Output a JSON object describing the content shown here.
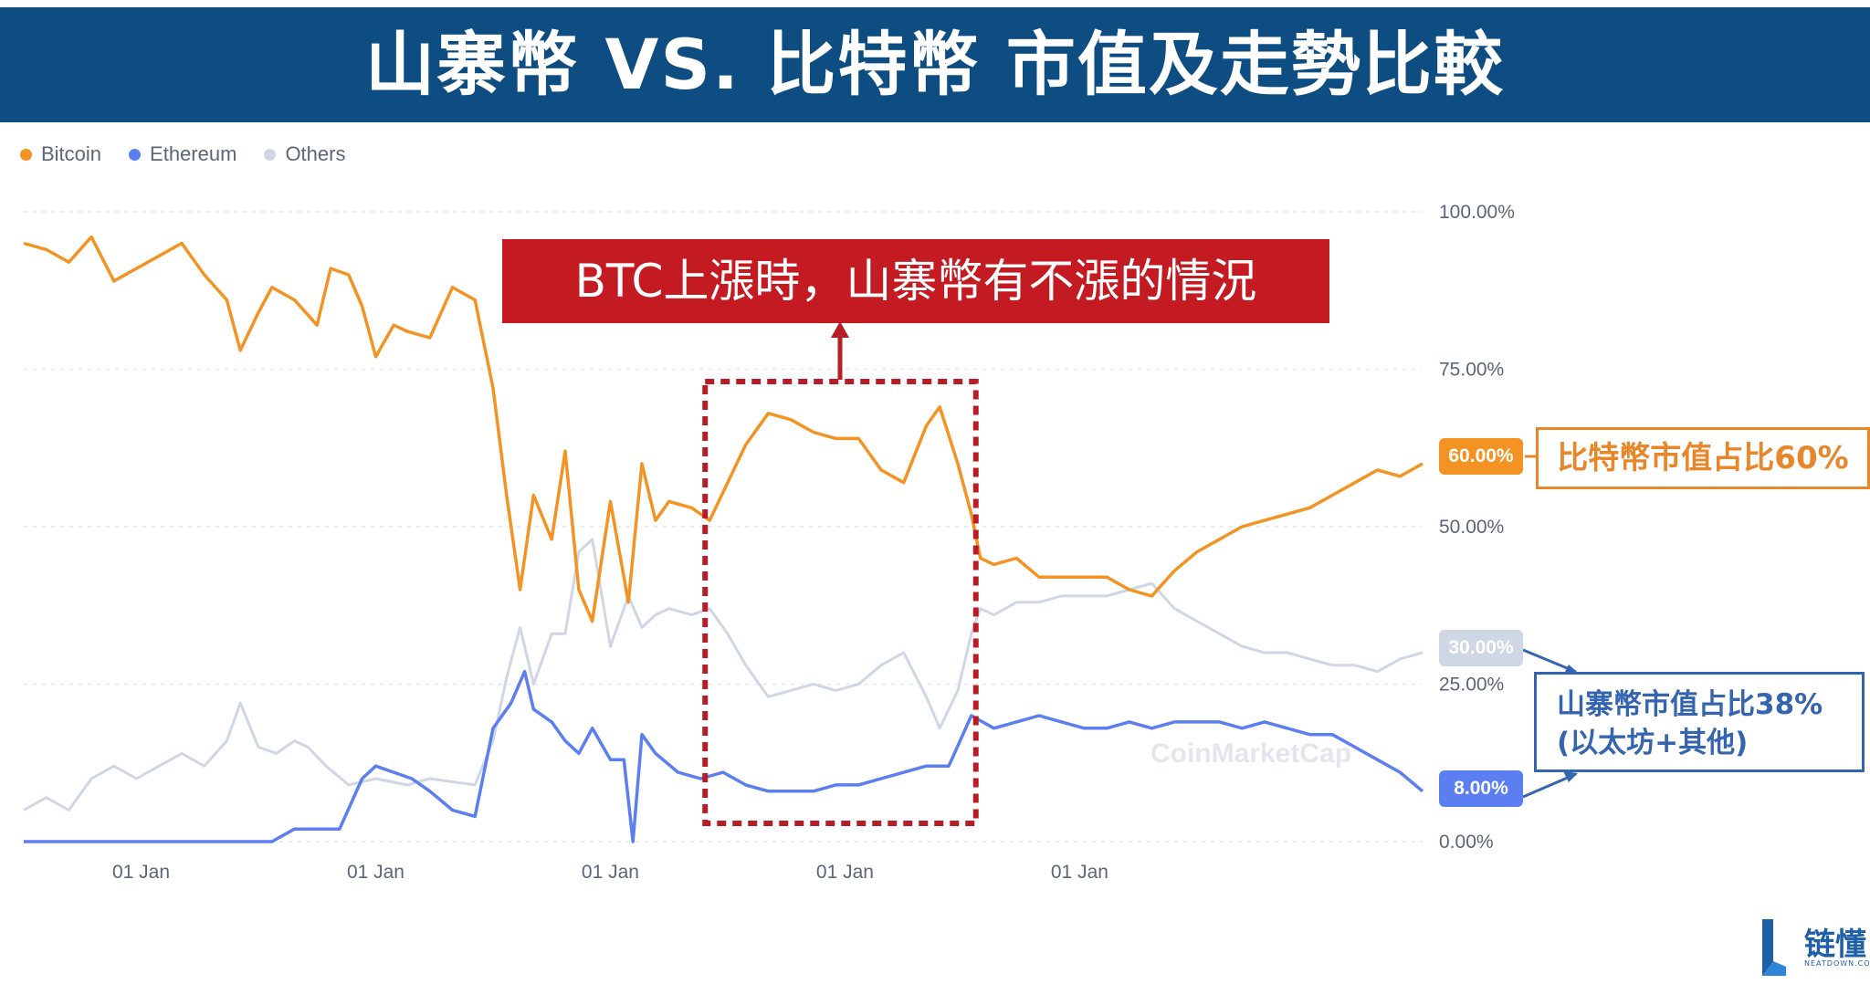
{
  "title": "山寨幣 VS. 比特幣  市值及走勢比較",
  "legend": [
    {
      "label": "Bitcoin",
      "color": "#f39324"
    },
    {
      "label": "Ethereum",
      "color": "#5b7ff0"
    },
    {
      "label": "Others",
      "color": "#cfd6e4"
    }
  ],
  "callout": "BTC上漲時，山寨幣有不漲的情況",
  "btc_note": "比特幣市值占比60%",
  "alt_note_line1": "山寨幣市值占比38%",
  "alt_note_line2": "(以太坊+其他)",
  "badges": {
    "bitcoin": "60.00%",
    "others": "30.00%",
    "ethereum": "8.00%"
  },
  "watermark": "CoinMarketCap",
  "logo": {
    "name": "链懂",
    "sub": "NEATDOWN.COM"
  },
  "chart_data": {
    "type": "line",
    "y_ticks": [
      "100.00%",
      "75.00%",
      "50.00%",
      "25.00%",
      "0.00%"
    ],
    "ylim": [
      0,
      100
    ],
    "x_ticks": [
      {
        "label": "01 Jan",
        "x": 26
      },
      {
        "label": "01 Jan",
        "x": 78
      },
      {
        "label": "01 Jan",
        "x": 130
      },
      {
        "label": "01 Jan",
        "x": 182
      },
      {
        "label": "01 Jan",
        "x": 234
      }
    ],
    "xlim": [
      0,
      310
    ],
    "highlight_range": [
      151,
      211
    ],
    "series": [
      {
        "name": "Bitcoin",
        "color": "#f39324",
        "points": [
          [
            0,
            95
          ],
          [
            5,
            94
          ],
          [
            10,
            92
          ],
          [
            15,
            96
          ],
          [
            20,
            89
          ],
          [
            25,
            91
          ],
          [
            30,
            93
          ],
          [
            35,
            95
          ],
          [
            40,
            90
          ],
          [
            45,
            86
          ],
          [
            48,
            78
          ],
          [
            52,
            84
          ],
          [
            55,
            88
          ],
          [
            60,
            86
          ],
          [
            65,
            82
          ],
          [
            68,
            91
          ],
          [
            72,
            90
          ],
          [
            75,
            85
          ],
          [
            78,
            77
          ],
          [
            82,
            82
          ],
          [
            85,
            81
          ],
          [
            90,
            80
          ],
          [
            95,
            88
          ],
          [
            100,
            86
          ],
          [
            104,
            72
          ],
          [
            107,
            55
          ],
          [
            110,
            40
          ],
          [
            113,
            55
          ],
          [
            117,
            48
          ],
          [
            120,
            62
          ],
          [
            123,
            40
          ],
          [
            126,
            35
          ],
          [
            130,
            54
          ],
          [
            134,
            38
          ],
          [
            137,
            60
          ],
          [
            140,
            51
          ],
          [
            143,
            54
          ],
          [
            148,
            53
          ],
          [
            152,
            51
          ],
          [
            156,
            57
          ],
          [
            160,
            63
          ],
          [
            165,
            68
          ],
          [
            170,
            67
          ],
          [
            175,
            65
          ],
          [
            180,
            64
          ],
          [
            185,
            64
          ],
          [
            190,
            59
          ],
          [
            195,
            57
          ],
          [
            200,
            66
          ],
          [
            203,
            69
          ],
          [
            207,
            60
          ],
          [
            210,
            52
          ],
          [
            212,
            45
          ],
          [
            215,
            44
          ],
          [
            220,
            45
          ],
          [
            225,
            42
          ],
          [
            230,
            42
          ],
          [
            235,
            42
          ],
          [
            240,
            42
          ],
          [
            245,
            40
          ],
          [
            250,
            39
          ],
          [
            255,
            43
          ],
          [
            260,
            46
          ],
          [
            265,
            48
          ],
          [
            270,
            50
          ],
          [
            275,
            51
          ],
          [
            280,
            52
          ],
          [
            285,
            53
          ],
          [
            290,
            55
          ],
          [
            295,
            57
          ],
          [
            300,
            59
          ],
          [
            305,
            58
          ],
          [
            310,
            60
          ]
        ]
      },
      {
        "name": "Ethereum",
        "color": "#5b7ff0",
        "points": [
          [
            0,
            0
          ],
          [
            30,
            0
          ],
          [
            55,
            0
          ],
          [
            60,
            2
          ],
          [
            65,
            2
          ],
          [
            70,
            2
          ],
          [
            75,
            10
          ],
          [
            78,
            12
          ],
          [
            82,
            11
          ],
          [
            86,
            10
          ],
          [
            90,
            8
          ],
          [
            95,
            5
          ],
          [
            100,
            4
          ],
          [
            104,
            18
          ],
          [
            108,
            22
          ],
          [
            111,
            27
          ],
          [
            113,
            21
          ],
          [
            117,
            19
          ],
          [
            120,
            16
          ],
          [
            123,
            14
          ],
          [
            126,
            18
          ],
          [
            130,
            13
          ],
          [
            133,
            13
          ],
          [
            135,
            0
          ],
          [
            137,
            17
          ],
          [
            140,
            14
          ],
          [
            145,
            11
          ],
          [
            150,
            10
          ],
          [
            155,
            11
          ],
          [
            160,
            9
          ],
          [
            165,
            8
          ],
          [
            170,
            8
          ],
          [
            175,
            8
          ],
          [
            180,
            9
          ],
          [
            185,
            9
          ],
          [
            190,
            10
          ],
          [
            195,
            11
          ],
          [
            200,
            12
          ],
          [
            205,
            12
          ],
          [
            210,
            20
          ],
          [
            215,
            18
          ],
          [
            220,
            19
          ],
          [
            225,
            20
          ],
          [
            230,
            19
          ],
          [
            235,
            18
          ],
          [
            240,
            18
          ],
          [
            245,
            19
          ],
          [
            250,
            18
          ],
          [
            255,
            19
          ],
          [
            260,
            19
          ],
          [
            265,
            19
          ],
          [
            270,
            18
          ],
          [
            275,
            19
          ],
          [
            280,
            18
          ],
          [
            285,
            17
          ],
          [
            290,
            17
          ],
          [
            295,
            15
          ],
          [
            300,
            13
          ],
          [
            305,
            11
          ],
          [
            310,
            8
          ]
        ]
      },
      {
        "name": "Others",
        "color": "#cfd6e4",
        "points": [
          [
            0,
            5
          ],
          [
            5,
            7
          ],
          [
            10,
            5
          ],
          [
            15,
            10
          ],
          [
            20,
            12
          ],
          [
            25,
            10
          ],
          [
            30,
            12
          ],
          [
            35,
            14
          ],
          [
            40,
            12
          ],
          [
            45,
            16
          ],
          [
            48,
            22
          ],
          [
            52,
            15
          ],
          [
            56,
            14
          ],
          [
            60,
            16
          ],
          [
            63,
            15
          ],
          [
            67,
            12
          ],
          [
            72,
            9
          ],
          [
            78,
            10
          ],
          [
            85,
            9
          ],
          [
            90,
            10
          ],
          [
            100,
            9
          ],
          [
            104,
            16
          ],
          [
            107,
            26
          ],
          [
            110,
            34
          ],
          [
            113,
            25
          ],
          [
            117,
            33
          ],
          [
            120,
            33
          ],
          [
            123,
            46
          ],
          [
            126,
            48
          ],
          [
            130,
            31
          ],
          [
            134,
            39
          ],
          [
            137,
            34
          ],
          [
            140,
            36
          ],
          [
            143,
            37
          ],
          [
            148,
            36
          ],
          [
            152,
            37
          ],
          [
            156,
            33
          ],
          [
            160,
            28
          ],
          [
            165,
            23
          ],
          [
            170,
            24
          ],
          [
            175,
            25
          ],
          [
            180,
            24
          ],
          [
            185,
            25
          ],
          [
            190,
            28
          ],
          [
            195,
            30
          ],
          [
            200,
            23
          ],
          [
            203,
            18
          ],
          [
            207,
            24
          ],
          [
            210,
            33
          ],
          [
            212,
            37
          ],
          [
            215,
            36
          ],
          [
            220,
            38
          ],
          [
            225,
            38
          ],
          [
            230,
            39
          ],
          [
            235,
            39
          ],
          [
            240,
            39
          ],
          [
            245,
            40
          ],
          [
            250,
            41
          ],
          [
            255,
            37
          ],
          [
            260,
            35
          ],
          [
            265,
            33
          ],
          [
            270,
            31
          ],
          [
            275,
            30
          ],
          [
            280,
            30
          ],
          [
            285,
            29
          ],
          [
            290,
            28
          ],
          [
            295,
            28
          ],
          [
            300,
            27
          ],
          [
            305,
            29
          ],
          [
            310,
            30
          ]
        ]
      }
    ]
  }
}
